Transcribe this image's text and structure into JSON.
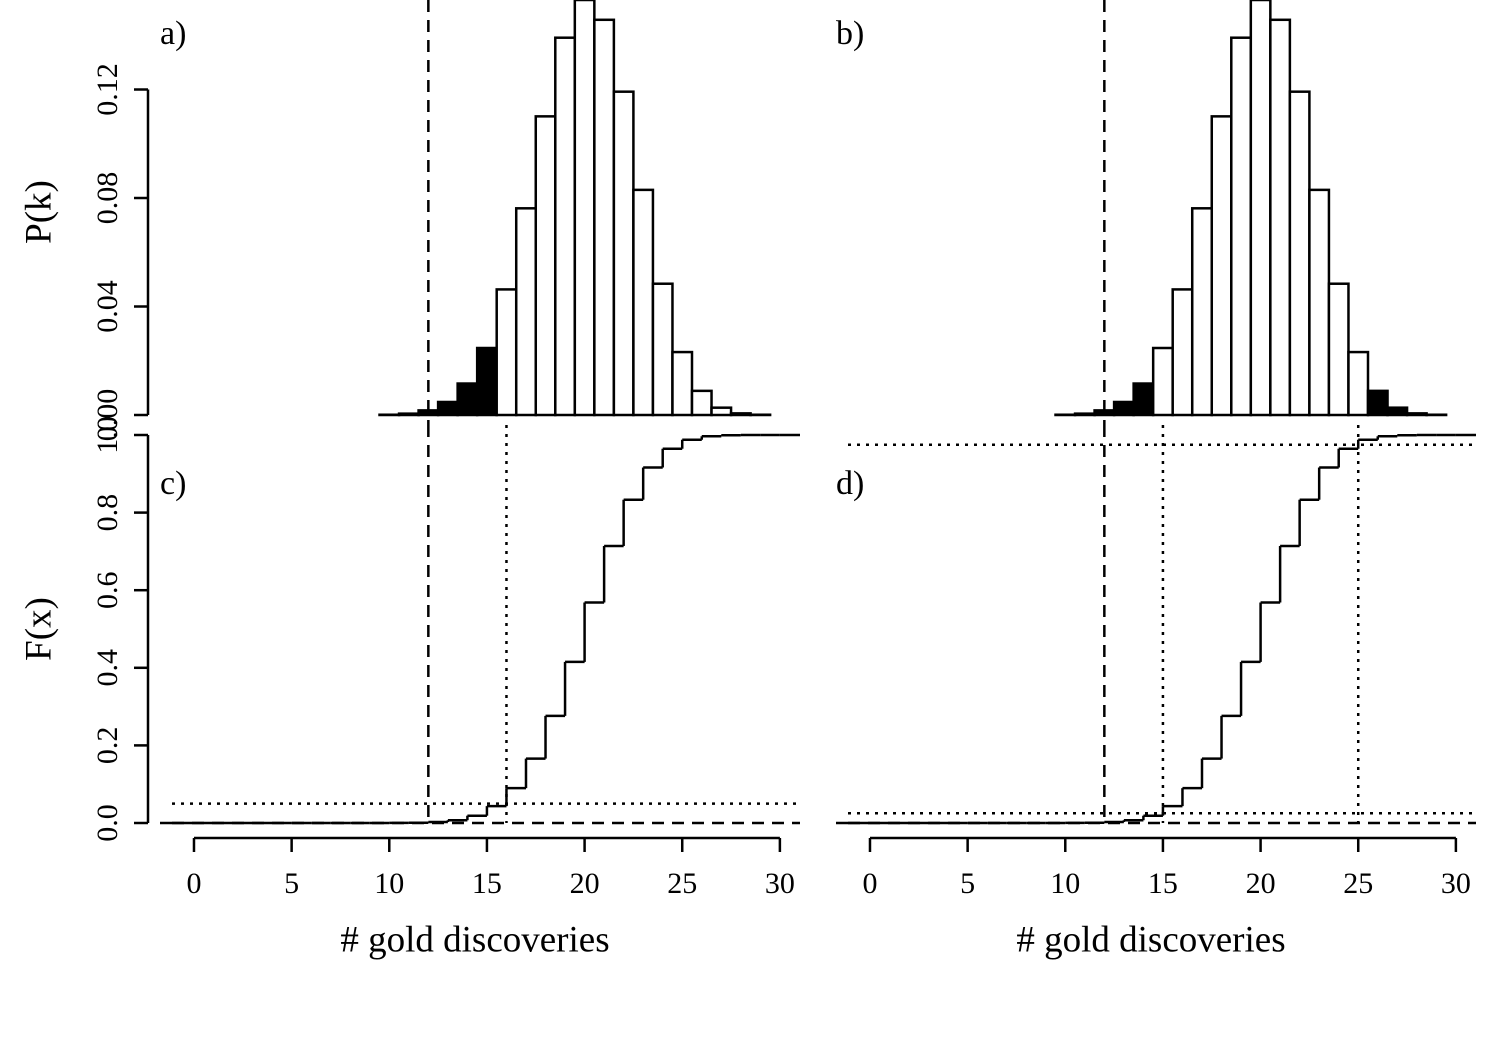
{
  "chart_data": [
    {
      "type": "bar",
      "panel_label": "a)",
      "ylabel": "P(k)",
      "x": [
        0,
        1,
        2,
        3,
        4,
        5,
        6,
        7,
        8,
        9,
        10,
        11,
        12,
        13,
        14,
        15,
        16,
        17,
        18,
        19,
        20,
        21,
        22,
        23,
        24,
        25,
        26,
        27,
        28,
        29,
        30
      ],
      "values": [
        0,
        0,
        0,
        0,
        0,
        0,
        0,
        0,
        0,
        0,
        0.0001,
        0.0005,
        0.0017,
        0.0048,
        0.0116,
        0.0247,
        0.0463,
        0.0762,
        0.1101,
        0.1391,
        0.153,
        0.1457,
        0.1192,
        0.083,
        0.0484,
        0.0232,
        0.0089,
        0.0027,
        0.0006,
        0.0001,
        0
      ],
      "colors": [
        "#000000",
        "#000000",
        "#000000",
        "#000000",
        "#000000",
        "#000000",
        "#000000",
        "#000000",
        "#000000",
        "#000000",
        "#000000",
        "#000000",
        "#000000",
        "#000000",
        "#000000",
        "#000000",
        "#ffffff",
        "#ffffff",
        "#ffffff",
        "#ffffff",
        "#ffffff",
        "#ffffff",
        "#ffffff",
        "#ffffff",
        "#ffffff",
        "#ffffff",
        "#ffffff",
        "#ffffff",
        "#ffffff",
        "#ffffff",
        "#ffffff"
      ],
      "xlim": [
        -1.74,
        31.03
      ],
      "ylim": [
        0,
        0.153
      ],
      "yticks": [
        {
          "value": 0,
          "label": "0.00"
        },
        {
          "value": 0.04,
          "label": "0.04"
        },
        {
          "value": 0.08,
          "label": "0.08"
        },
        {
          "value": 0.12,
          "label": "0.12"
        }
      ],
      "vlines": [
        {
          "x": 12,
          "style": "dashed"
        }
      ],
      "hlines": []
    },
    {
      "type": "bar",
      "panel_label": "b)",
      "x": [
        0,
        1,
        2,
        3,
        4,
        5,
        6,
        7,
        8,
        9,
        10,
        11,
        12,
        13,
        14,
        15,
        16,
        17,
        18,
        19,
        20,
        21,
        22,
        23,
        24,
        25,
        26,
        27,
        28,
        29,
        30
      ],
      "values": [
        0,
        0,
        0,
        0,
        0,
        0,
        0,
        0,
        0,
        0,
        0.0001,
        0.0005,
        0.0017,
        0.0048,
        0.0116,
        0.0247,
        0.0463,
        0.0762,
        0.1101,
        0.1391,
        0.153,
        0.1457,
        0.1192,
        0.083,
        0.0484,
        0.0232,
        0.0089,
        0.0027,
        0.0006,
        0.0001,
        0
      ],
      "colors": [
        "#000000",
        "#000000",
        "#000000",
        "#000000",
        "#000000",
        "#000000",
        "#000000",
        "#000000",
        "#000000",
        "#000000",
        "#000000",
        "#000000",
        "#000000",
        "#000000",
        "#000000",
        "#ffffff",
        "#ffffff",
        "#ffffff",
        "#ffffff",
        "#ffffff",
        "#ffffff",
        "#ffffff",
        "#ffffff",
        "#ffffff",
        "#ffffff",
        "#ffffff",
        "#000000",
        "#000000",
        "#000000",
        "#000000",
        "#000000"
      ],
      "xlim": [
        -1.74,
        31.03
      ],
      "ylim": [
        0,
        0.153
      ],
      "vlines": [
        {
          "x": 12,
          "style": "dashed"
        }
      ],
      "hlines": []
    },
    {
      "type": "step",
      "panel_label": "c)",
      "ylabel": "F(x)",
      "xlabel": "# gold discoveries",
      "x": [
        0,
        1,
        2,
        3,
        4,
        5,
        6,
        7,
        8,
        9,
        10,
        11,
        12,
        13,
        14,
        15,
        16,
        17,
        18,
        19,
        20,
        21,
        22,
        23,
        24,
        25,
        26,
        27,
        28,
        29,
        30
      ],
      "values": [
        0,
        0,
        0,
        0,
        0,
        0,
        0,
        0,
        0,
        0,
        0.0002,
        0.0007,
        0.0025,
        0.0072,
        0.0188,
        0.0435,
        0.0898,
        0.166,
        0.2761,
        0.4152,
        0.5683,
        0.714,
        0.8332,
        0.9162,
        0.9646,
        0.9878,
        0.9967,
        0.9994,
        0.9999,
        1,
        1
      ],
      "xlim": [
        -1.74,
        31.03
      ],
      "ylim": [
        0,
        1
      ],
      "xticks": [
        0,
        5,
        10,
        15,
        20,
        25,
        30
      ],
      "yticks": [
        {
          "value": 0,
          "label": "0.0"
        },
        0.2,
        0.4,
        0.6,
        0.8,
        {
          "value": 1,
          "label": "1.0"
        }
      ],
      "vlines": [
        {
          "x": 12,
          "style": "dashed"
        },
        {
          "x": 16,
          "style": "dotted"
        }
      ],
      "hlines": [
        {
          "y": 0.05,
          "style": "dotted"
        },
        {
          "y": 0,
          "style": "dashed"
        }
      ]
    },
    {
      "type": "step",
      "panel_label": "d)",
      "xlabel": "# gold discoveries",
      "x": [
        0,
        1,
        2,
        3,
        4,
        5,
        6,
        7,
        8,
        9,
        10,
        11,
        12,
        13,
        14,
        15,
        16,
        17,
        18,
        19,
        20,
        21,
        22,
        23,
        24,
        25,
        26,
        27,
        28,
        29,
        30
      ],
      "values": [
        0,
        0,
        0,
        0,
        0,
        0,
        0,
        0,
        0,
        0,
        0.0002,
        0.0007,
        0.0025,
        0.0072,
        0.0188,
        0.0435,
        0.0898,
        0.166,
        0.2761,
        0.4152,
        0.5683,
        0.714,
        0.8332,
        0.9162,
        0.9646,
        0.9878,
        0.9967,
        0.9994,
        0.9999,
        1,
        1
      ],
      "xlim": [
        -1.74,
        31.03
      ],
      "ylim": [
        0,
        1
      ],
      "xticks": [
        0,
        5,
        10,
        15,
        20,
        25,
        30
      ],
      "vlines": [
        {
          "x": 12,
          "style": "dashed"
        },
        {
          "x": 15,
          "style": "dotted"
        },
        {
          "x": 25,
          "style": "dotted"
        }
      ],
      "hlines": [
        {
          "y": 0.025,
          "style": "dotted"
        },
        {
          "y": 0.975,
          "style": "dotted"
        },
        {
          "y": 0,
          "style": "dashed"
        }
      ]
    }
  ]
}
